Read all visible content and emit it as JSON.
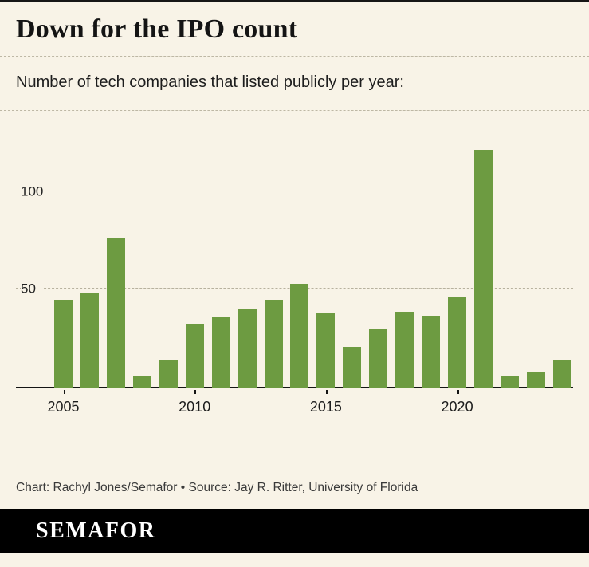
{
  "header": {
    "title": "Down for the IPO count",
    "subtitle": "Number of tech companies that listed publicly per year:"
  },
  "chart_data": {
    "type": "bar",
    "title": "Down for the IPO count",
    "subtitle": "Number of tech companies that listed publicly per year:",
    "categories": [
      2005,
      2006,
      2007,
      2008,
      2009,
      2010,
      2011,
      2012,
      2013,
      2014,
      2015,
      2016,
      2017,
      2018,
      2019,
      2020,
      2021,
      2022,
      2023,
      2024
    ],
    "values": [
      45,
      48,
      76,
      6,
      14,
      33,
      36,
      40,
      45,
      53,
      38,
      21,
      30,
      39,
      37,
      46,
      121,
      6,
      8,
      14
    ],
    "x_tick_labels": [
      "2005",
      "2010",
      "2015",
      "2020"
    ],
    "y_ticks": [
      50,
      100
    ],
    "ylim": [
      0,
      132
    ],
    "bar_color": "#6d9b41",
    "background_color": "#f8f3e7",
    "grid": "dashed horizontal gridlines at y ticks",
    "legend": "none"
  },
  "footer": {
    "credit": "Chart: Rachyl Jones/Semafor • Source: Jay R. Ritter, University of Florida",
    "logo": "SEMAFOR"
  }
}
